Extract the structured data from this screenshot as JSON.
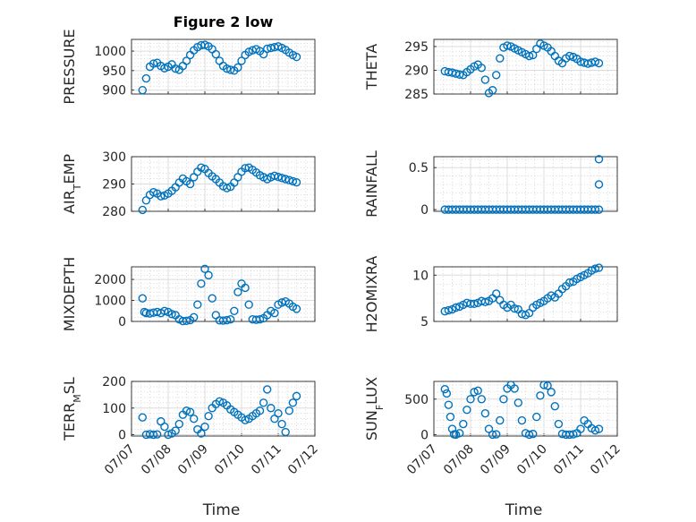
{
  "chart_data": {
    "type": "scatter",
    "title": "Figure 2 low",
    "marker_color": "#0072BD",
    "grid": true,
    "minor_grid": true,
    "x_tick_labels": [
      "07/07",
      "07/08",
      "07/09",
      "07/10",
      "07/11",
      "07/12"
    ],
    "x_range": [
      "07/07",
      "07/12"
    ],
    "xlabel": "Time",
    "panels": [
      {
        "ylabel": "PRESSURE",
        "ylabel_sub": "",
        "ylabel_tail": "",
        "ylim": [
          890,
          1030
        ],
        "yticks": [
          900,
          950,
          1000
        ],
        "x": [
          0.3,
          0.4,
          0.5,
          0.6,
          0.7,
          0.8,
          0.9,
          1.0,
          1.1,
          1.2,
          1.3,
          1.4,
          1.5,
          1.6,
          1.7,
          1.8,
          1.9,
          2.0,
          2.1,
          2.2,
          2.3,
          2.4,
          2.5,
          2.6,
          2.7,
          2.8,
          2.9,
          3.0,
          3.1,
          3.2,
          3.3,
          3.4,
          3.5,
          3.6,
          3.7,
          3.8,
          3.9,
          4.0,
          4.1,
          4.2,
          4.3,
          4.4,
          4.5
        ],
        "y": [
          900,
          930,
          960,
          968,
          970,
          962,
          956,
          960,
          966,
          955,
          952,
          962,
          975,
          990,
          1002,
          1010,
          1015,
          1016,
          1012,
          1005,
          992,
          975,
          962,
          955,
          952,
          950,
          958,
          975,
          990,
          998,
          1002,
          1005,
          1000,
          992,
          1006,
          1008,
          1010,
          1012,
          1008,
          1003,
          996,
          990,
          985
        ]
      },
      {
        "ylabel": "THETA",
        "ylabel_sub": "",
        "ylabel_tail": "",
        "ylim": [
          285,
          296.5
        ],
        "yticks": [
          285,
          290,
          295
        ],
        "x": [
          0.3,
          0.4,
          0.5,
          0.6,
          0.7,
          0.8,
          0.9,
          1.0,
          1.1,
          1.2,
          1.3,
          1.4,
          1.5,
          1.6,
          1.7,
          1.8,
          1.9,
          2.0,
          2.1,
          2.2,
          2.3,
          2.4,
          2.5,
          2.6,
          2.7,
          2.8,
          2.9,
          3.0,
          3.1,
          3.2,
          3.3,
          3.4,
          3.5,
          3.6,
          3.7,
          3.8,
          3.9,
          4.0,
          4.1,
          4.2,
          4.3,
          4.4,
          4.5
        ],
        "y": [
          289.8,
          289.6,
          289.5,
          289.3,
          289.1,
          289.0,
          289.6,
          290.2,
          290.8,
          291.2,
          290.5,
          288.0,
          285.2,
          285.8,
          289.0,
          292.5,
          294.8,
          295.2,
          295.0,
          294.6,
          294.2,
          293.8,
          293.4,
          293.0,
          293.2,
          294.5,
          295.6,
          295.2,
          294.8,
          294.0,
          293.0,
          292.0,
          291.5,
          292.5,
          293.0,
          292.8,
          292.4,
          291.8,
          291.6,
          291.4,
          291.6,
          291.8,
          291.5
        ]
      },
      {
        "ylabel": "AIR",
        "ylabel_sub": "T",
        "ylabel_tail": "EMP",
        "ylim": [
          280,
          300
        ],
        "yticks": [
          280,
          290,
          300
        ],
        "x": [
          0.3,
          0.4,
          0.5,
          0.6,
          0.7,
          0.8,
          0.9,
          1.0,
          1.1,
          1.2,
          1.3,
          1.4,
          1.5,
          1.6,
          1.7,
          1.8,
          1.9,
          2.0,
          2.1,
          2.2,
          2.3,
          2.4,
          2.5,
          2.6,
          2.7,
          2.8,
          2.9,
          3.0,
          3.1,
          3.2,
          3.3,
          3.4,
          3.5,
          3.6,
          3.7,
          3.8,
          3.9,
          4.0,
          4.1,
          4.2,
          4.3,
          4.4,
          4.5
        ],
        "y": [
          280.5,
          284.0,
          286.0,
          287.0,
          286.5,
          285.5,
          285.8,
          286.5,
          287.5,
          288.8,
          290.5,
          292.0,
          291.0,
          290.0,
          292.5,
          294.5,
          296.0,
          295.5,
          294.0,
          292.8,
          291.8,
          290.5,
          289.2,
          288.5,
          289.0,
          290.5,
          292.5,
          294.5,
          295.8,
          296.0,
          295.2,
          294.2,
          293.2,
          292.5,
          291.8,
          292.5,
          293.0,
          292.6,
          292.2,
          291.8,
          291.4,
          291.0,
          290.6
        ]
      },
      {
        "ylabel": "RAINFALL",
        "ylabel_sub": "",
        "ylabel_tail": "",
        "ylim": [
          -0.02,
          0.63
        ],
        "yticks": [
          0,
          0.5
        ],
        "x": [
          0.3,
          0.4,
          0.5,
          0.6,
          0.7,
          0.8,
          0.9,
          1.0,
          1.1,
          1.2,
          1.3,
          1.4,
          1.5,
          1.6,
          1.7,
          1.8,
          1.9,
          2.0,
          2.1,
          2.2,
          2.3,
          2.4,
          2.5,
          2.6,
          2.7,
          2.8,
          2.9,
          3.0,
          3.1,
          3.2,
          3.3,
          3.4,
          3.5,
          3.6,
          3.7,
          3.8,
          3.9,
          4.0,
          4.1,
          4.2,
          4.3,
          4.4,
          4.5,
          4.5,
          4.5
        ],
        "y": [
          0,
          0,
          0,
          0,
          0,
          0,
          0,
          0,
          0,
          0,
          0,
          0,
          0,
          0,
          0,
          0,
          0,
          0,
          0,
          0,
          0,
          0,
          0,
          0,
          0,
          0,
          0,
          0,
          0,
          0,
          0,
          0,
          0,
          0,
          0,
          0,
          0,
          0,
          0,
          0,
          0,
          0,
          0,
          0.3,
          0.6
        ]
      },
      {
        "ylabel": "MIXDEPTH",
        "ylabel_sub": "",
        "ylabel_tail": "",
        "ylim": [
          0,
          2600
        ],
        "yticks": [
          0,
          1000,
          2000
        ],
        "x": [
          0.3,
          0.35,
          0.4,
          0.5,
          0.6,
          0.7,
          0.8,
          0.9,
          1.0,
          1.1,
          1.2,
          1.3,
          1.4,
          1.5,
          1.6,
          1.7,
          1.8,
          1.9,
          2.0,
          2.1,
          2.2,
          2.3,
          2.4,
          2.5,
          2.6,
          2.7,
          2.8,
          2.9,
          3.0,
          3.1,
          3.2,
          3.3,
          3.4,
          3.5,
          3.6,
          3.7,
          3.8,
          3.9,
          4.0,
          4.1,
          4.2,
          4.3,
          4.4,
          4.5
        ],
        "y": [
          1100,
          450,
          400,
          380,
          420,
          450,
          400,
          500,
          450,
          350,
          300,
          100,
          20,
          30,
          60,
          200,
          800,
          1800,
          2500,
          2200,
          1100,
          300,
          50,
          40,
          60,
          100,
          500,
          1400,
          1800,
          1600,
          800,
          100,
          80,
          100,
          150,
          300,
          500,
          400,
          800,
          900,
          950,
          850,
          700,
          600
        ]
      },
      {
        "ylabel": "H2OMIXRA",
        "ylabel_sub": "",
        "ylabel_tail": "",
        "ylim": [
          5,
          10.9
        ],
        "yticks": [
          5,
          10
        ],
        "x": [
          0.3,
          0.4,
          0.5,
          0.6,
          0.7,
          0.8,
          0.9,
          1.0,
          1.1,
          1.2,
          1.3,
          1.4,
          1.5,
          1.6,
          1.7,
          1.8,
          1.9,
          2.0,
          2.1,
          2.2,
          2.3,
          2.4,
          2.5,
          2.6,
          2.7,
          2.8,
          2.9,
          3.0,
          3.1,
          3.2,
          3.3,
          3.4,
          3.5,
          3.6,
          3.7,
          3.8,
          3.9,
          4.0,
          4.1,
          4.2,
          4.3,
          4.4,
          4.5
        ],
        "y": [
          6.1,
          6.2,
          6.3,
          6.5,
          6.6,
          6.8,
          7.0,
          6.9,
          6.9,
          7.0,
          7.2,
          7.1,
          7.2,
          7.5,
          8.0,
          7.3,
          6.8,
          6.5,
          6.8,
          6.4,
          6.3,
          5.8,
          5.7,
          5.9,
          6.5,
          6.8,
          7.0,
          7.2,
          7.5,
          7.8,
          7.6,
          8.0,
          8.5,
          8.8,
          9.2,
          9.3,
          9.6,
          9.8,
          10.0,
          10.2,
          10.5,
          10.7,
          10.8
        ]
      },
      {
        "ylabel": "TERR",
        "ylabel_sub": "M",
        "ylabel_tail": "SL",
        "ylim": [
          -5,
          200
        ],
        "yticks": [
          0,
          100,
          200
        ],
        "x": [
          0.3,
          0.4,
          0.5,
          0.6,
          0.7,
          0.8,
          0.9,
          1.0,
          1.1,
          1.2,
          1.3,
          1.4,
          1.5,
          1.6,
          1.7,
          1.8,
          1.9,
          2.0,
          2.1,
          2.2,
          2.3,
          2.4,
          2.5,
          2.6,
          2.7,
          2.8,
          2.9,
          3.0,
          3.1,
          3.2,
          3.3,
          3.4,
          3.5,
          3.6,
          3.7,
          3.8,
          3.9,
          4.0,
          4.1,
          4.2,
          4.3,
          4.4,
          4.5
        ],
        "y": [
          65,
          0,
          2,
          0,
          1,
          50,
          30,
          0,
          5,
          15,
          40,
          75,
          90,
          85,
          60,
          20,
          5,
          30,
          70,
          100,
          115,
          125,
          120,
          110,
          95,
          85,
          75,
          65,
          55,
          60,
          70,
          80,
          90,
          120,
          170,
          100,
          60,
          80,
          40,
          10,
          90,
          120,
          145
        ]
      },
      {
        "ylabel": "SUN",
        "ylabel_sub": "F",
        "ylabel_tail": "LUX",
        "ylim": [
          -20,
          750
        ],
        "yticks": [
          0,
          500
        ],
        "x": [
          0.3,
          0.35,
          0.4,
          0.45,
          0.5,
          0.55,
          0.6,
          0.7,
          0.8,
          0.9,
          1.0,
          1.1,
          1.2,
          1.3,
          1.4,
          1.5,
          1.6,
          1.7,
          1.8,
          1.9,
          2.0,
          2.1,
          2.2,
          2.3,
          2.4,
          2.5,
          2.6,
          2.7,
          2.8,
          2.9,
          3.0,
          3.1,
          3.2,
          3.3,
          3.4,
          3.5,
          3.6,
          3.7,
          3.8,
          3.9,
          4.0,
          4.1,
          4.2,
          4.3,
          4.4,
          4.5
        ],
        "y": [
          640,
          580,
          420,
          250,
          80,
          5,
          0,
          20,
          150,
          350,
          500,
          600,
          620,
          500,
          300,
          80,
          0,
          5,
          200,
          500,
          650,
          700,
          650,
          450,
          200,
          20,
          0,
          10,
          250,
          550,
          700,
          690,
          600,
          400,
          150,
          10,
          0,
          0,
          5,
          20,
          80,
          200,
          150,
          90,
          60,
          80
        ]
      }
    ]
  }
}
